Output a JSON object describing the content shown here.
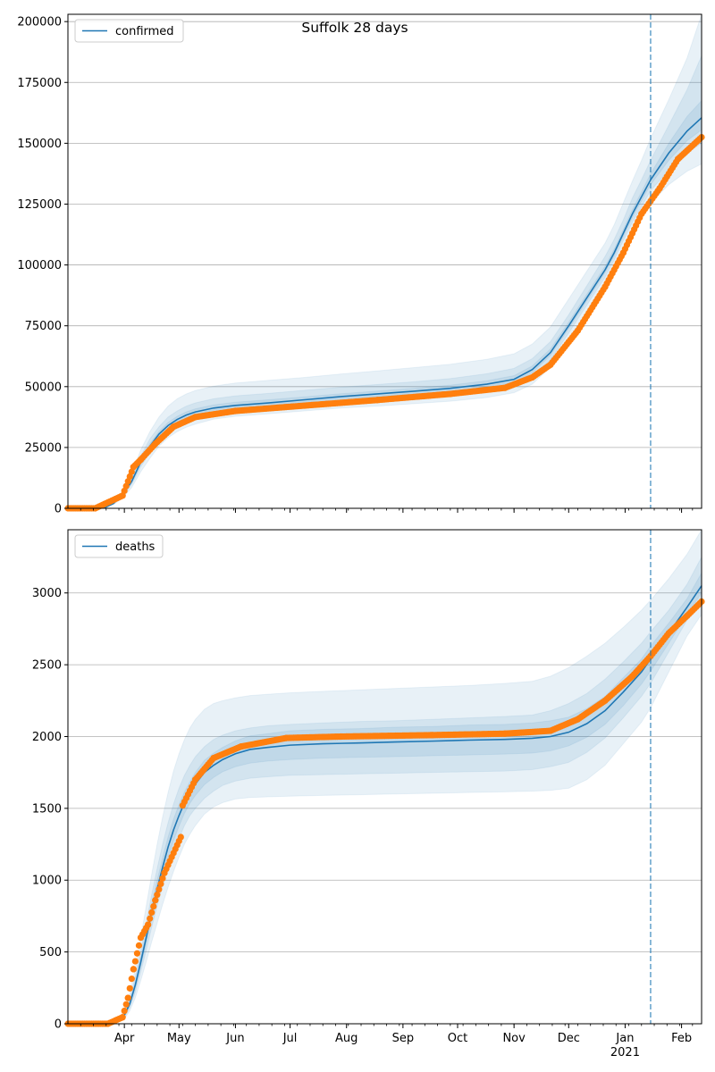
{
  "figure": {
    "title": "Suffolk 28 days",
    "xaxis": {
      "months": [
        {
          "label": "Apr",
          "day": 31
        },
        {
          "label": "May",
          "day": 61
        },
        {
          "label": "Jun",
          "day": 92
        },
        {
          "label": "Jul",
          "day": 122
        },
        {
          "label": "Aug",
          "day": 153
        },
        {
          "label": "Sep",
          "day": 184
        },
        {
          "label": "Oct",
          "day": 214
        },
        {
          "label": "Nov",
          "day": 245
        },
        {
          "label": "Dec",
          "day": 275
        },
        {
          "label": "Jan",
          "day": 306
        },
        {
          "label": "Feb",
          "day": 337
        }
      ],
      "year_label": "2021",
      "year_label_day": 306,
      "minor_tick_every_days": 7,
      "range_days": [
        0,
        348
      ],
      "forecast_start_day": 320
    },
    "colors": {
      "model": "#1f77b4",
      "observed": "#ff7f0e",
      "band": "#1f77b4",
      "grid": "#b0b0b0",
      "vline": "#1f77b4"
    }
  },
  "chart_data": [
    {
      "type": "line",
      "name": "confirmed",
      "legend": "confirmed",
      "legend_position": "top-left",
      "grid": true,
      "ylim": [
        0,
        203000
      ],
      "yticks": [
        "0",
        "25000",
        "50000",
        "75000",
        "100000",
        "125000",
        "150000",
        "175000",
        "200000"
      ],
      "ytick_values": [
        0,
        25000,
        50000,
        75000,
        100000,
        125000,
        150000,
        175000,
        200000
      ],
      "model": {
        "x": [
          0,
          14,
          20,
          25,
          30,
          35,
          40,
          45,
          50,
          55,
          60,
          65,
          70,
          80,
          92,
          110,
          130,
          150,
          170,
          190,
          210,
          230,
          245,
          255,
          265,
          275,
          285,
          295,
          300,
          305,
          310,
          315,
          320,
          330,
          340,
          348
        ],
        "y": [
          0,
          0,
          200,
          2000,
          5500,
          11000,
          19000,
          25500,
          30500,
          34000,
          36500,
          38300,
          39600,
          41200,
          42300,
          43300,
          44600,
          45900,
          47000,
          48100,
          49300,
          51000,
          53000,
          57000,
          64000,
          75000,
          86500,
          98000,
          105000,
          113000,
          121000,
          128000,
          135000,
          146000,
          155000,
          160500
        ]
      },
      "bands": [
        {
          "lower": [
            0,
            0,
            150,
            1500,
            4200,
            8500,
            15000,
            20500,
            25500,
            29000,
            31500,
            33300,
            34600,
            36600,
            37800,
            38800,
            40000,
            41200,
            42000,
            43000,
            44000,
            45500,
            47500,
            51000,
            58000,
            69000,
            81000,
            92500,
            99500,
            107000,
            114000,
            120000,
            125500,
            133000,
            138500,
            141500
          ],
          "upper": [
            0,
            0,
            300,
            2600,
            7000,
            14000,
            24000,
            31500,
            37500,
            42000,
            45000,
            47000,
            48400,
            50200,
            51500,
            52600,
            53800,
            55200,
            56500,
            57800,
            59200,
            61200,
            63500,
            67500,
            74500,
            86000,
            97500,
            109000,
            116500,
            125500,
            134500,
            143000,
            152000,
            168000,
            185000,
            203000
          ]
        },
        {
          "lower": [
            0,
            0,
            170,
            1700,
            4800,
            9800,
            17000,
            23000,
            28000,
            31500,
            34000,
            35800,
            37100,
            38900,
            40100,
            41100,
            42300,
            43500,
            44500,
            45500,
            46600,
            48200,
            50200,
            54000,
            61000,
            72000,
            83500,
            95000,
            102000,
            110000,
            117500,
            124000,
            130500,
            139000,
            146000,
            150000
          ],
          "upper": [
            0,
            0,
            250,
            2300,
            6200,
            12500,
            21500,
            28500,
            33500,
            37500,
            40000,
            42000,
            43300,
            45000,
            46200,
            47200,
            48500,
            49800,
            50900,
            52000,
            53300,
            55300,
            57500,
            61500,
            68500,
            79500,
            91500,
            103500,
            110500,
            118500,
            127500,
            135000,
            143000,
            157500,
            172000,
            186000
          ]
        },
        {
          "lower": [
            0,
            0,
            185,
            1850,
            5200,
            10500,
            18200,
            24500,
            29500,
            33000,
            35500,
            37300,
            38600,
            40200,
            41400,
            42400,
            43600,
            44900,
            45900,
            47000,
            48100,
            49800,
            51800,
            55700,
            62800,
            73800,
            85200,
            96800,
            103700,
            111700,
            119500,
            126300,
            133000,
            143000,
            151000,
            155500
          ],
          "upper": [
            0,
            0,
            215,
            2150,
            5800,
            11600,
            20000,
            26600,
            31600,
            35300,
            37800,
            39600,
            40900,
            42500,
            43600,
            44600,
            45800,
            47100,
            48200,
            49300,
            50600,
            52400,
            54500,
            58500,
            65500,
            76500,
            88000,
            99500,
            106500,
            114500,
            122800,
            130000,
            137500,
            150000,
            161000,
            167500
          ]
        }
      ],
      "observed": {
        "segments": [
          [
            0,
            15,
            0,
            0
          ],
          [
            15,
            30,
            0,
            5200
          ],
          [
            30,
            36,
            5200,
            17000
          ],
          [
            36,
            40,
            17000,
            20000
          ],
          [
            40,
            48,
            20000,
            26500
          ],
          [
            48,
            58,
            26500,
            33500
          ],
          [
            58,
            70,
            33500,
            37500
          ],
          [
            70,
            92,
            37500,
            40000
          ],
          [
            92,
            130,
            40000,
            42200
          ],
          [
            130,
            170,
            42200,
            44500
          ],
          [
            170,
            210,
            44500,
            47000
          ],
          [
            210,
            240,
            47000,
            49500
          ],
          [
            240,
            255,
            49500,
            53800
          ],
          [
            255,
            265,
            53800,
            59000
          ],
          [
            265,
            280,
            59000,
            73000
          ],
          [
            280,
            295,
            73000,
            91000
          ],
          [
            295,
            305,
            91000,
            105000
          ],
          [
            305,
            315,
            105000,
            121000
          ],
          [
            315,
            325,
            121000,
            131500
          ],
          [
            325,
            335,
            131500,
            143500
          ],
          [
            335,
            348,
            143500,
            152500
          ]
        ],
        "step_days": 1
      }
    },
    {
      "type": "line",
      "name": "deaths",
      "legend": "deaths",
      "legend_position": "top-left",
      "grid": true,
      "ylim": [
        0,
        3440
      ],
      "yticks": [
        "0",
        "500",
        "1000",
        "1500",
        "2000",
        "2500",
        "3000"
      ],
      "ytick_values": [
        0,
        500,
        1000,
        1500,
        2000,
        2500,
        3000
      ],
      "model": {
        "x": [
          0,
          18,
          25,
          28,
          31,
          34,
          37,
          40,
          43,
          46,
          49,
          52,
          55,
          58,
          61,
          64,
          67,
          70,
          75,
          80,
          85,
          92,
          100,
          110,
          122,
          140,
          160,
          180,
          200,
          220,
          240,
          255,
          265,
          275,
          285,
          295,
          305,
          315,
          320,
          330,
          340,
          348
        ],
        "y": [
          0,
          0,
          10,
          25,
          60,
          140,
          270,
          430,
          600,
          780,
          940,
          1090,
          1230,
          1350,
          1450,
          1540,
          1610,
          1670,
          1750,
          1800,
          1840,
          1880,
          1910,
          1925,
          1940,
          1950,
          1955,
          1962,
          1968,
          1975,
          1980,
          1988,
          2000,
          2030,
          2090,
          2180,
          2310,
          2450,
          2540,
          2720,
          2900,
          3050
        ]
      },
      "bands": [
        {
          "lower": [
            0,
            0,
            5,
            15,
            35,
            90,
            180,
            300,
            430,
            570,
            700,
            830,
            950,
            1060,
            1160,
            1250,
            1320,
            1380,
            1460,
            1510,
            1540,
            1565,
            1575,
            1580,
            1585,
            1590,
            1595,
            1600,
            1605,
            1610,
            1615,
            1620,
            1625,
            1640,
            1700,
            1800,
            1950,
            2100,
            2200,
            2450,
            2700,
            2850
          ],
          "upper": [
            0,
            0,
            15,
            40,
            95,
            210,
            390,
            600,
            820,
            1040,
            1250,
            1440,
            1610,
            1760,
            1880,
            1980,
            2060,
            2120,
            2190,
            2230,
            2250,
            2270,
            2285,
            2295,
            2305,
            2315,
            2325,
            2335,
            2345,
            2355,
            2370,
            2385,
            2420,
            2480,
            2560,
            2650,
            2760,
            2880,
            2950,
            3100,
            3270,
            3440
          ]
        },
        {
          "lower": [
            0,
            0,
            7,
            19,
            45,
            110,
            220,
            360,
            510,
            670,
            820,
            960,
            1080,
            1190,
            1290,
            1380,
            1450,
            1500,
            1570,
            1620,
            1660,
            1690,
            1710,
            1720,
            1730,
            1735,
            1740,
            1745,
            1750,
            1755,
            1760,
            1770,
            1790,
            1820,
            1890,
            1990,
            2130,
            2280,
            2370,
            2590,
            2810,
            2950
          ],
          "upper": [
            0,
            0,
            13,
            33,
            80,
            175,
            330,
            510,
            700,
            900,
            1080,
            1250,
            1400,
            1530,
            1640,
            1730,
            1800,
            1860,
            1930,
            1980,
            2010,
            2040,
            2060,
            2075,
            2085,
            2095,
            2105,
            2110,
            2120,
            2130,
            2140,
            2150,
            2180,
            2230,
            2300,
            2400,
            2520,
            2650,
            2730,
            2880,
            3060,
            3250
          ]
        },
        {
          "lower": [
            0,
            0,
            9,
            22,
            52,
            125,
            245,
            395,
            560,
            725,
            880,
            1025,
            1160,
            1275,
            1375,
            1465,
            1535,
            1590,
            1665,
            1715,
            1755,
            1790,
            1815,
            1830,
            1840,
            1850,
            1855,
            1860,
            1866,
            1872,
            1878,
            1885,
            1900,
            1935,
            1995,
            2085,
            2215,
            2365,
            2455,
            2650,
            2850,
            3000
          ],
          "upper": [
            0,
            0,
            11,
            28,
            68,
            155,
            295,
            465,
            640,
            835,
            1000,
            1155,
            1300,
            1425,
            1525,
            1615,
            1685,
            1750,
            1835,
            1885,
            1925,
            1970,
            2005,
            2020,
            2040,
            2050,
            2055,
            2065,
            2070,
            2080,
            2085,
            2095,
            2110,
            2135,
            2195,
            2280,
            2410,
            2540,
            2630,
            2790,
            2960,
            3140
          ]
        }
      ],
      "observed": {
        "segments": [
          [
            0,
            22,
            0,
            0
          ],
          [
            22,
            30,
            0,
            45
          ],
          [
            30,
            33,
            45,
            180
          ],
          [
            33,
            36,
            180,
            380
          ],
          [
            36,
            40,
            380,
            600
          ],
          [
            40,
            44,
            600,
            690
          ],
          [
            44,
            48,
            690,
            860
          ],
          [
            48,
            53,
            860,
            1050
          ],
          [
            53,
            62,
            1050,
            1300
          ],
          [
            63,
            70,
            1520,
            1700
          ],
          [
            70,
            80,
            1700,
            1850
          ],
          [
            80,
            95,
            1850,
            1930
          ],
          [
            95,
            120,
            1930,
            1990
          ],
          [
            120,
            150,
            1990,
            2000
          ],
          [
            150,
            200,
            2000,
            2010
          ],
          [
            200,
            240,
            2010,
            2020
          ],
          [
            240,
            265,
            2020,
            2040
          ],
          [
            265,
            280,
            2040,
            2120
          ],
          [
            280,
            295,
            2120,
            2250
          ],
          [
            295,
            310,
            2250,
            2420
          ],
          [
            310,
            320,
            2420,
            2560
          ],
          [
            320,
            330,
            2560,
            2720
          ],
          [
            330,
            340,
            2720,
            2840
          ],
          [
            340,
            348,
            2840,
            2940
          ]
        ],
        "step_days": 1
      }
    }
  ]
}
